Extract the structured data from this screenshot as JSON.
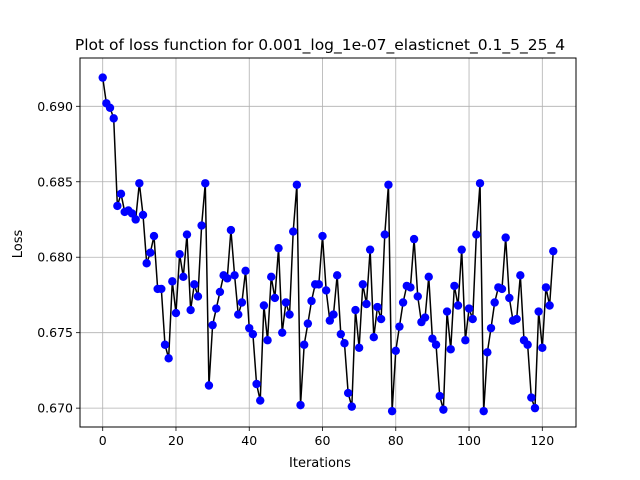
{
  "chart_data": {
    "type": "line",
    "title": "Plot of loss function for 0.001_log_1e-07_elasticnet_0.1_5_25_4",
    "xlabel": "Iterations",
    "ylabel": "Loss",
    "xlim": [
      -6.2,
      129.2
    ],
    "ylim": [
      0.66875,
      0.6932
    ],
    "xticks": [
      0,
      20,
      40,
      60,
      80,
      100,
      120
    ],
    "xtick_labels": [
      "0",
      "20",
      "40",
      "60",
      "80",
      "100",
      "120"
    ],
    "yticks": [
      0.67,
      0.675,
      0.68,
      0.685,
      0.69
    ],
    "ytick_labels": [
      "0.670",
      "0.675",
      "0.680",
      "0.685",
      "0.690"
    ],
    "grid": true,
    "line_color": "#000000",
    "marker_color": "#0000ff",
    "series": [
      {
        "x": [
          0,
          1,
          2,
          3,
          4,
          5,
          6,
          7,
          8,
          9,
          10,
          11,
          12,
          13,
          14,
          15,
          16,
          17,
          18,
          19,
          20,
          21,
          22,
          23,
          24,
          25,
          26,
          27,
          28,
          29,
          30,
          31,
          32,
          33,
          34,
          35,
          36,
          37,
          38,
          39,
          40,
          41,
          42,
          43,
          44,
          45,
          46,
          47,
          48,
          49,
          50,
          51,
          52,
          53,
          54,
          55,
          56,
          57,
          58,
          59,
          60,
          61,
          62,
          63,
          64,
          65,
          66,
          67,
          68,
          69,
          70,
          71,
          72,
          73,
          74,
          75,
          76,
          77,
          78,
          79,
          80,
          81,
          82,
          83,
          84,
          85,
          86,
          87,
          88,
          89,
          90,
          91,
          92,
          93,
          94,
          95,
          96,
          97,
          98,
          99,
          100,
          101,
          102,
          103,
          104,
          105,
          106,
          107,
          108,
          109,
          110,
          111,
          112,
          113,
          114,
          115,
          116,
          117,
          118,
          119,
          120,
          121,
          122,
          123
        ],
        "y": [
          0.6919,
          0.6902,
          0.6899,
          0.6892,
          0.6834,
          0.6842,
          0.683,
          0.6831,
          0.6829,
          0.6825,
          0.6849,
          0.6828,
          0.6796,
          0.6803,
          0.6814,
          0.6779,
          0.6779,
          0.6742,
          0.6733,
          0.6784,
          0.6763,
          0.6802,
          0.6787,
          0.6815,
          0.6765,
          0.6782,
          0.6774,
          0.6821,
          0.6849,
          0.6715,
          0.6755,
          0.6766,
          0.6777,
          0.6788,
          0.6786,
          0.6818,
          0.6788,
          0.6762,
          0.677,
          0.6791,
          0.6753,
          0.6749,
          0.6716,
          0.6705,
          0.6768,
          0.6745,
          0.6787,
          0.6773,
          0.6806,
          0.675,
          0.677,
          0.6762,
          0.6817,
          0.6848,
          0.6702,
          0.6742,
          0.6756,
          0.6771,
          0.6782,
          0.6782,
          0.6814,
          0.6778,
          0.6758,
          0.6762,
          0.6788,
          0.6749,
          0.6743,
          0.671,
          0.6701,
          0.6765,
          0.674,
          0.6782,
          0.6769,
          0.6805,
          0.6747,
          0.6767,
          0.6759,
          0.6815,
          0.6848,
          0.6698,
          0.6738,
          0.6754,
          0.677,
          0.6781,
          0.678,
          0.6812,
          0.6774,
          0.6757,
          0.676,
          0.6787,
          0.6746,
          0.6742,
          0.6708,
          0.6699,
          0.6764,
          0.6739,
          0.6781,
          0.6768,
          0.6805,
          0.6745,
          0.6766,
          0.6759,
          0.6815,
          0.6849,
          0.6698,
          0.6737,
          0.6753,
          0.677,
          0.678,
          0.6779,
          0.6813,
          0.6773,
          0.6758,
          0.6759,
          0.6788,
          0.6745,
          0.6742,
          0.6707,
          0.67,
          0.6764,
          0.674,
          0.678,
          0.6768,
          0.6804
        ]
      }
    ]
  }
}
